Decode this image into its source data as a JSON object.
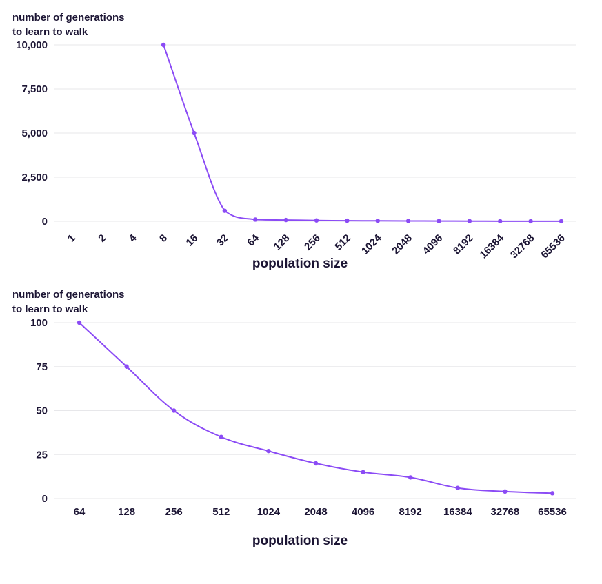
{
  "chart_data": [
    {
      "type": "line",
      "ylabel": "number of generations to learn to walk",
      "ylabel_lines": [
        "number of generations",
        "to learn to walk"
      ],
      "xlabel": "population size",
      "color": "#8b4bf5",
      "ylim": [
        0,
        10000
      ],
      "yticks": [
        0,
        2500,
        5000,
        7500,
        10000
      ],
      "ytick_labels": [
        "0",
        "2,500",
        "5,000",
        "7,500",
        "10,000"
      ],
      "categories": [
        "1",
        "2",
        "4",
        "8",
        "16",
        "32",
        "64",
        "128",
        "256",
        "512",
        "1024",
        "2048",
        "4096",
        "8192",
        "16384",
        "32768",
        "65536"
      ],
      "x_rotated": true,
      "values": [
        null,
        null,
        null,
        10000,
        5000,
        600,
        100,
        75,
        50,
        35,
        27,
        20,
        15,
        12,
        6,
        4,
        3
      ],
      "grid": true
    },
    {
      "type": "line",
      "ylabel": "number of generations to learn to walk",
      "ylabel_lines": [
        "number of generations",
        "to learn to walk"
      ],
      "xlabel": "population size",
      "color": "#8b4bf5",
      "ylim": [
        0,
        100
      ],
      "yticks": [
        0,
        25,
        50,
        75,
        100
      ],
      "ytick_labels": [
        "0",
        "25",
        "50",
        "75",
        "100"
      ],
      "categories": [
        "64",
        "128",
        "256",
        "512",
        "1024",
        "2048",
        "4096",
        "8192",
        "16384",
        "32768",
        "65536"
      ],
      "x_rotated": false,
      "values": [
        100,
        75,
        50,
        35,
        27,
        20,
        15,
        12,
        6,
        4,
        3
      ],
      "grid": true
    }
  ]
}
